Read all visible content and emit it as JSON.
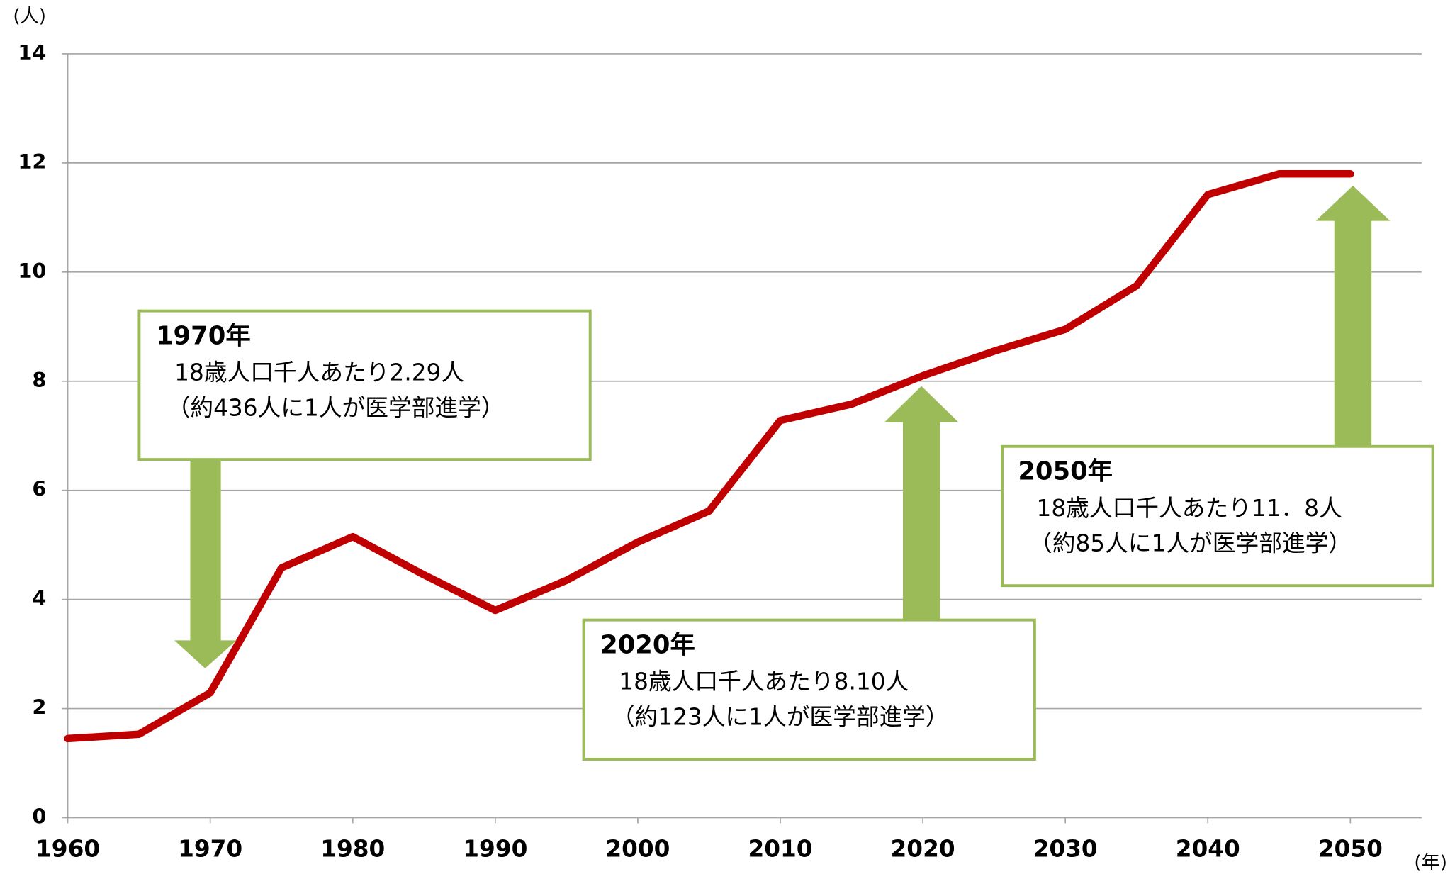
{
  "chart_data": {
    "type": "line",
    "y_unit": "(人)",
    "x_unit": "(年)",
    "x": [
      1960,
      1965,
      1970,
      1975,
      1980,
      1985,
      1990,
      1995,
      2000,
      2005,
      2010,
      2015,
      2020,
      2025,
      2030,
      2035,
      2040,
      2045,
      2050
    ],
    "series": [
      {
        "color": "#c00000",
        "values": [
          1.45,
          1.53,
          2.29,
          4.58,
          5.15,
          4.45,
          3.8,
          4.35,
          5.05,
          5.62,
          7.28,
          7.58,
          8.1,
          8.55,
          8.95,
          9.75,
          11.42,
          11.8,
          11.8
        ]
      }
    ],
    "xlim": [
      1960,
      2055
    ],
    "xticks": [
      1960,
      1970,
      1980,
      1990,
      2000,
      2010,
      2020,
      2030,
      2040,
      2050
    ],
    "ylim": [
      0,
      14
    ],
    "yticks": [
      0,
      2,
      4,
      6,
      8,
      10,
      12,
      14
    ],
    "grid": true,
    "annotations": [
      {
        "title": "1970年",
        "lines": [
          "18歳人口千人あたり2.29人",
          "（約436人に1人が医学部進学）"
        ]
      },
      {
        "title": "2020年",
        "lines": [
          "18歳人口千人あたり8.10人",
          "（約123人に1人が医学部進学）"
        ]
      },
      {
        "title": "2050年",
        "lines": [
          "18歳人口千人あたり11．8人",
          "（約85人に1人が医学部進学）"
        ]
      }
    ]
  }
}
